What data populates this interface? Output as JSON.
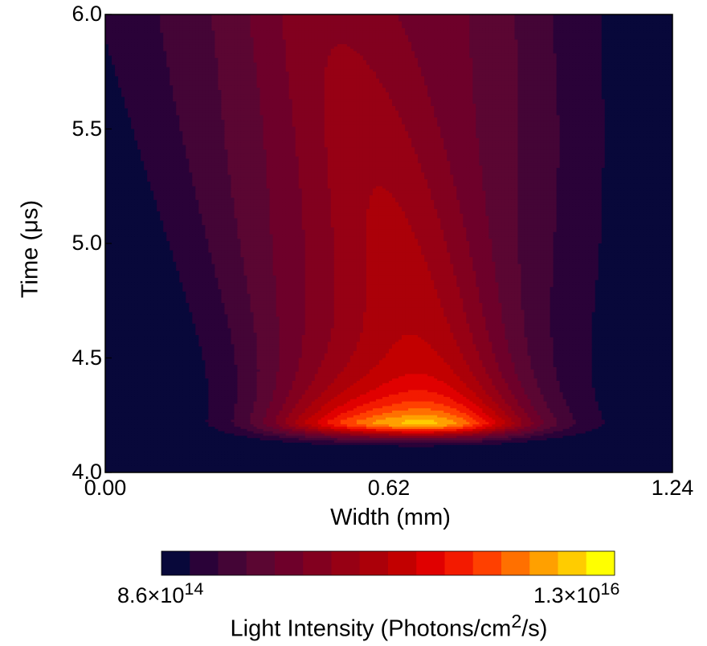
{
  "chart_data": {
    "type": "heatmap",
    "subtype": "filled-contour",
    "title": "",
    "xlabel": "Width (mm)",
    "ylabel": "Time (μs)",
    "xlim": [
      0.0,
      1.24
    ],
    "ylim": [
      4.0,
      6.0
    ],
    "x_ticks": [
      "0.00",
      "0.62",
      "1.24"
    ],
    "y_ticks": [
      "4.0",
      "4.5",
      "5.0",
      "5.5",
      "6.0"
    ],
    "colorbar": {
      "label_prefix": "Light Intensity (Photons/cm",
      "label_sup": "2",
      "label_suffix": "/s)",
      "min_mantissa": "8.6",
      "min_exponent": "14",
      "max_mantissa": "1.3",
      "max_exponent": "16",
      "times_sign": "×",
      "base": "10",
      "levels": 16,
      "colors": [
        "#08083a",
        "#2a0238",
        "#440536",
        "#5b0632",
        "#6e002a",
        "#82001f",
        "#970014",
        "#ab0009",
        "#c20000",
        "#e00000",
        "#f31a00",
        "#ff4000",
        "#ff7000",
        "#ffa000",
        "#ffcc00",
        "#ffff00"
      ]
    },
    "peak": {
      "x": 0.66,
      "y": 4.22
    },
    "grid": false
  }
}
